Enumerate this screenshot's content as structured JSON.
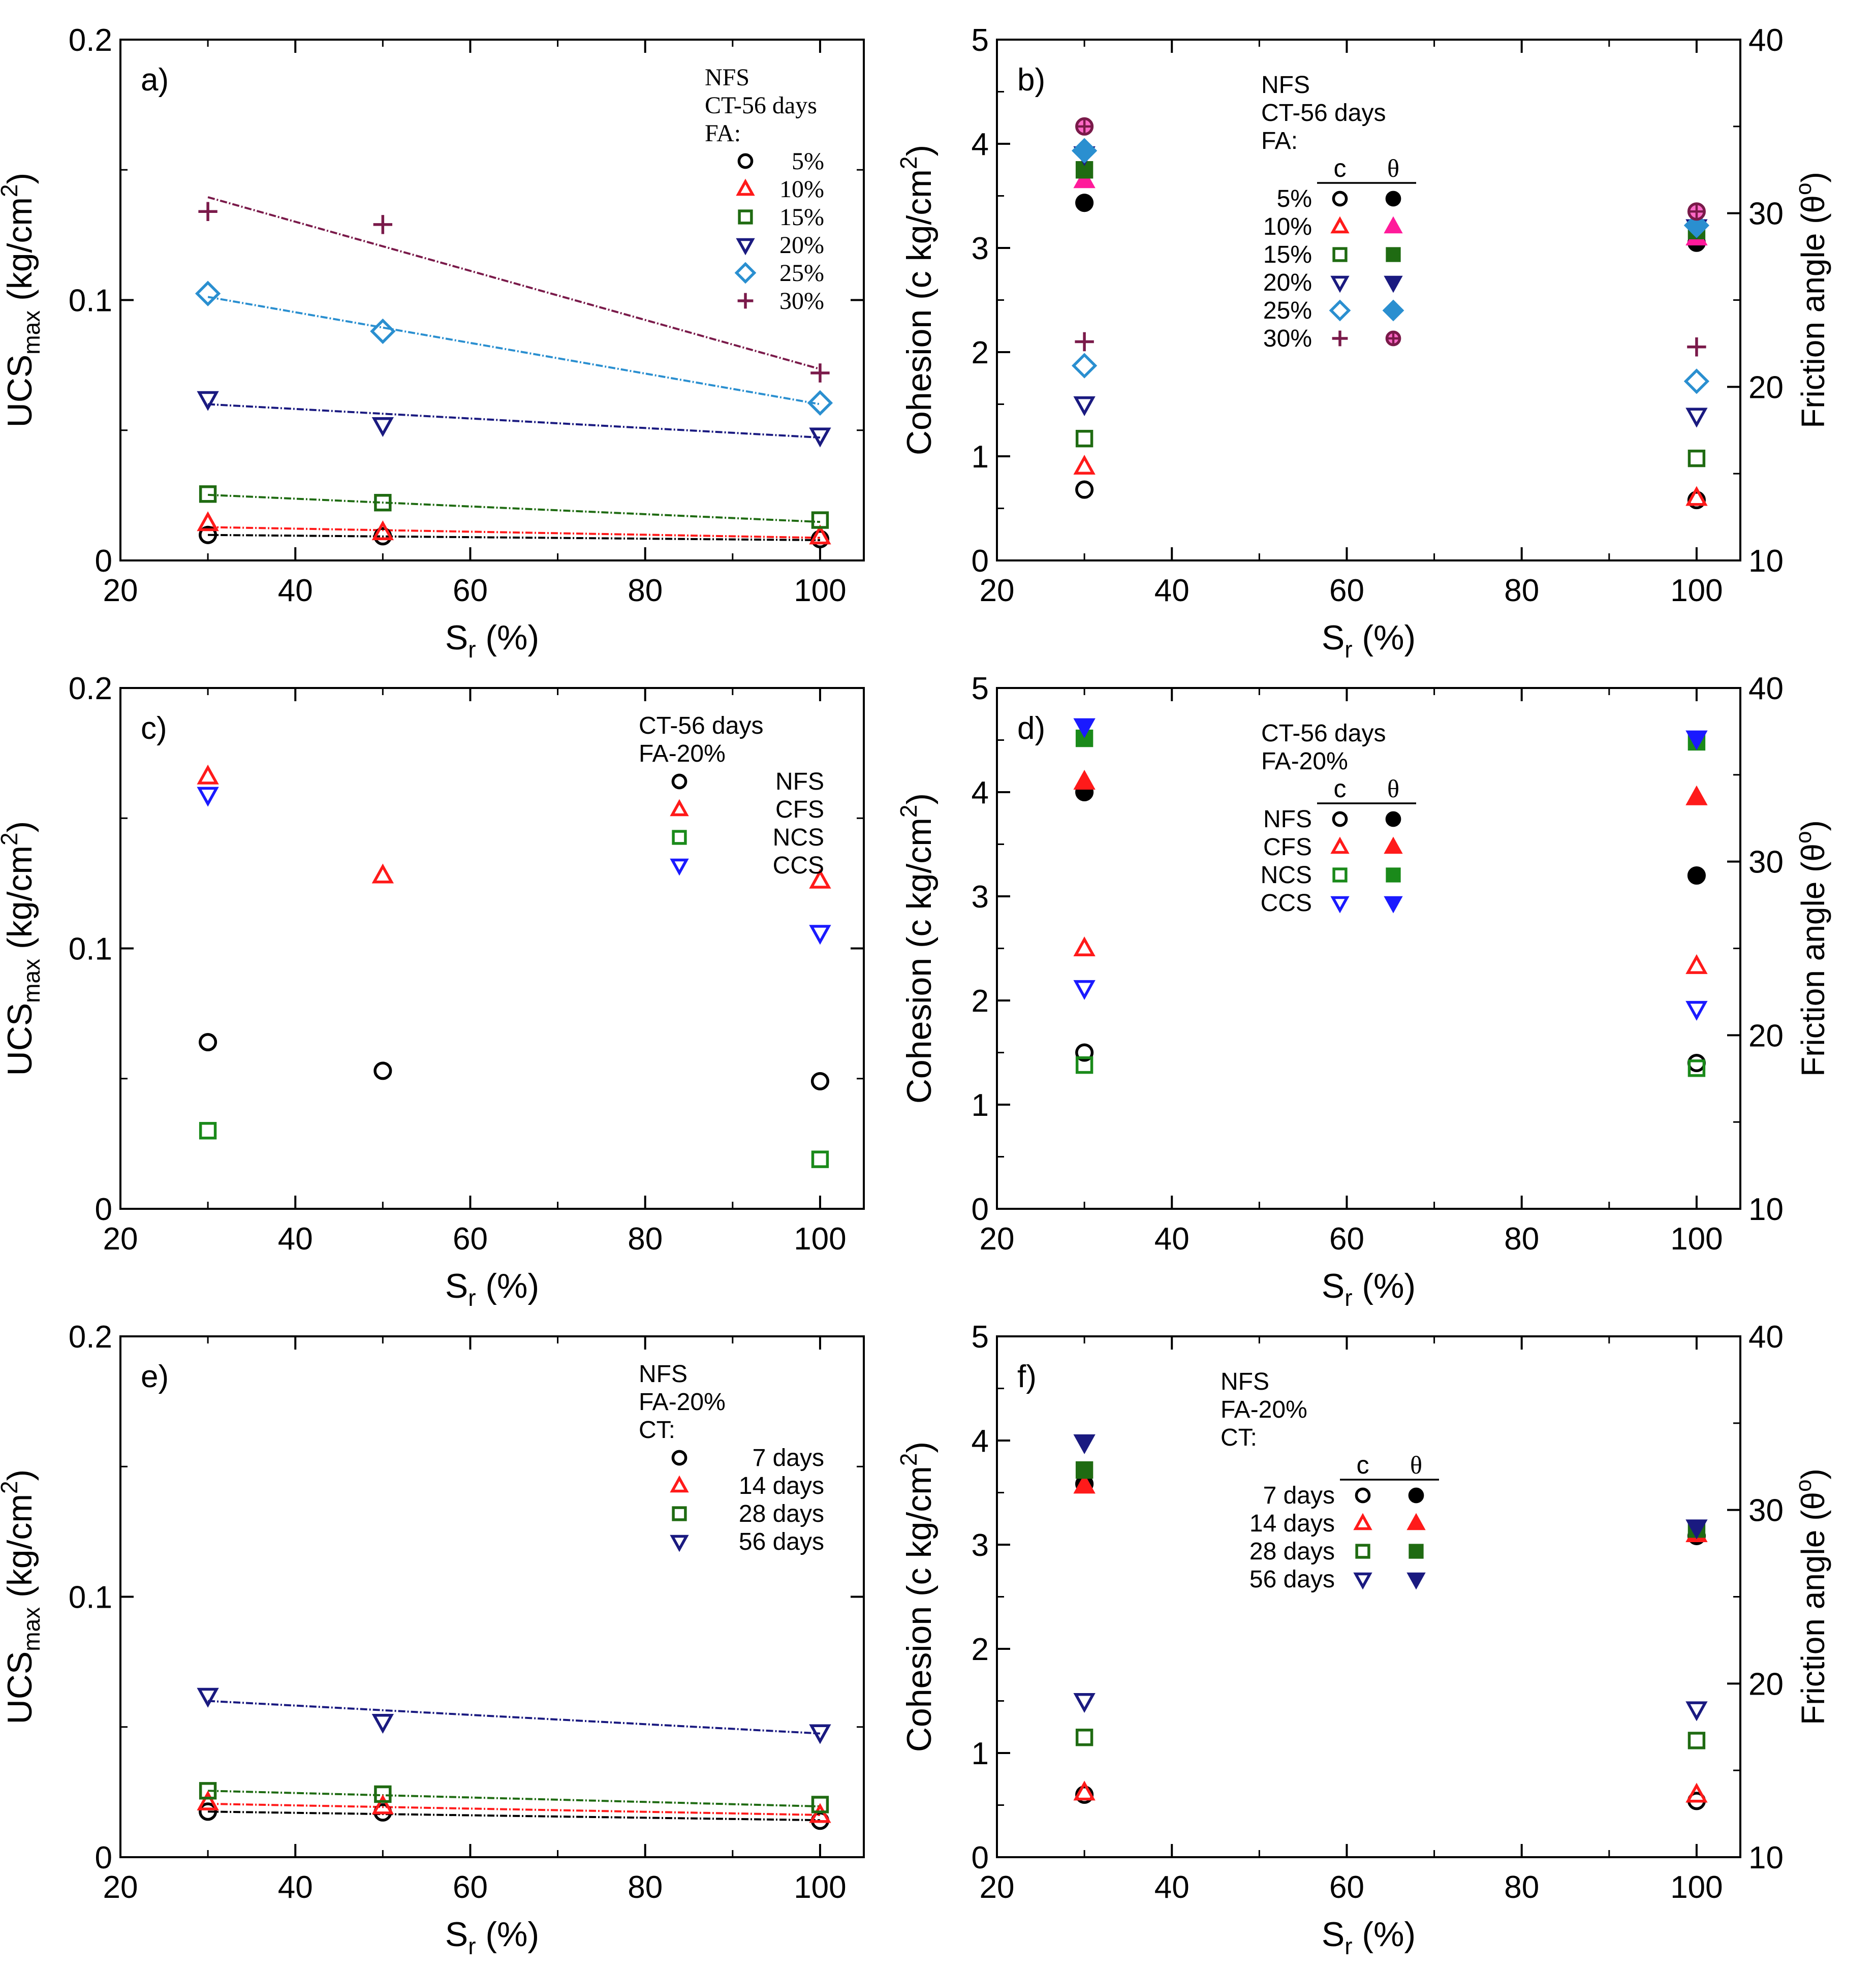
{
  "figure": {
    "colors": {
      "black": "#000000",
      "red": "#ff1a1a",
      "green": "#1f6b12",
      "darkgreen": "#1f6b12",
      "navy": "#1a1a80",
      "blue": "#1a1aff",
      "cyan": "#2a8fd0",
      "purple": "#7a1a4a",
      "magenta": "#ff1a9a",
      "brightgreen": "#1a8a1a"
    }
  },
  "chart_data": [
    {
      "id": "a",
      "type": "scatter",
      "panel_label": "a)",
      "xlabel_main": "S",
      "xlabel_sub": "r",
      "xlabel_tail": " (%)",
      "ylabel_main": "UCS",
      "ylabel_sub": "max",
      "ylabel_tail": " (kg/cm",
      "ylabel_sup": "2",
      "ylabel_close": ")",
      "xlim": [
        20,
        105
      ],
      "ylim": [
        0,
        0.2
      ],
      "xticks": [
        20,
        40,
        60,
        80,
        100
      ],
      "xtick_labels": [
        "20",
        "40",
        "60",
        "80",
        "100"
      ],
      "yticks": [
        0,
        0.1,
        0.2
      ],
      "ytick_labels": [
        "0",
        "0.1",
        "0.2"
      ],
      "legend_title": [
        "NFS",
        "CT-56 days",
        "FA:"
      ],
      "series": [
        {
          "name": "5%",
          "marker": "circle",
          "color": "black",
          "x": [
            30,
            50,
            100
          ],
          "y": [
            0.0098,
            0.0093,
            0.0082
          ],
          "fit": [
            [
              30,
              0.0098
            ],
            [
              100,
              0.0078
            ]
          ]
        },
        {
          "name": "10%",
          "marker": "triangle",
          "color": "red",
          "x": [
            30,
            50,
            100
          ],
          "y": [
            0.0143,
            0.0108,
            0.0092
          ],
          "fit": [
            [
              30,
              0.0128
            ],
            [
              100,
              0.0087
            ]
          ]
        },
        {
          "name": "15%",
          "marker": "square",
          "color": "darkgreen",
          "x": [
            30,
            50,
            100
          ],
          "y": [
            0.0255,
            0.0222,
            0.0155
          ],
          "fit": [
            [
              30,
              0.0252
            ],
            [
              100,
              0.0148
            ]
          ]
        },
        {
          "name": "20%",
          "marker": "triangle-down",
          "color": "navy",
          "x": [
            30,
            50,
            100
          ],
          "y": [
            0.062,
            0.052,
            0.048
          ],
          "fit": [
            [
              30,
              0.06
            ],
            [
              100,
              0.0472
            ]
          ]
        },
        {
          "name": "25%",
          "marker": "diamond",
          "color": "cyan",
          "x": [
            30,
            50,
            100
          ],
          "y": [
            0.1025,
            0.088,
            0.0605
          ],
          "fit": [
            [
              30,
              0.1012
            ],
            [
              100,
              0.06
            ]
          ]
        },
        {
          "name": "30%",
          "marker": "plus",
          "color": "purple",
          "x": [
            30,
            50,
            100
          ],
          "y": [
            0.134,
            0.129,
            0.072
          ],
          "fit": [
            [
              30,
              0.1395
            ],
            [
              100,
              0.0735
            ]
          ]
        }
      ]
    },
    {
      "id": "b",
      "type": "scatter",
      "panel_label": "b)",
      "xlabel_main": "S",
      "xlabel_sub": "r",
      "xlabel_tail": " (%)",
      "ylabel": "Cohesion (c kg/cm",
      "ylabel_sup": "2",
      "ylabel_close": ")",
      "y2label": "Friction angle (θ",
      "y2label_sup": "o",
      "y2label_close": ")",
      "xlim": [
        20,
        105
      ],
      "ylim": [
        0,
        5
      ],
      "y2lim": [
        10,
        40
      ],
      "xticks": [
        20,
        40,
        60,
        80,
        100
      ],
      "xtick_labels": [
        "20",
        "40",
        "60",
        "80",
        "100"
      ],
      "yticks": [
        0,
        1,
        2,
        3,
        4,
        5
      ],
      "ytick_labels": [
        "0",
        "1",
        "2",
        "3",
        "4",
        "5"
      ],
      "y2ticks": [
        10,
        20,
        30,
        40
      ],
      "y2tick_labels": [
        "10",
        "20",
        "30",
        "40"
      ],
      "legend_title": [
        "NFS",
        "CT-56 days",
        "FA:"
      ],
      "col_c": "c",
      "col_theta": "θ",
      "series": [
        {
          "name": "5%",
          "marker": "circle",
          "color": "black",
          "x": [
            30,
            100
          ],
          "c": [
            0.68,
            0.58
          ],
          "theta": [
            30.6,
            28.3
          ]
        },
        {
          "name": "10%",
          "marker": "triangle",
          "color": "red",
          "x": [
            30,
            100
          ],
          "c": [
            0.9,
            0.6
          ],
          "theta": [
            31.9,
            28.6
          ],
          "theta_color": "magenta"
        },
        {
          "name": "15%",
          "marker": "square",
          "color": "darkgreen",
          "x": [
            30,
            100
          ],
          "c": [
            1.17,
            0.98
          ],
          "theta": [
            32.5,
            29.0
          ]
        },
        {
          "name": "20%",
          "marker": "triangle-down",
          "color": "navy",
          "x": [
            30,
            100
          ],
          "c": [
            1.5,
            1.39
          ],
          "theta": [
            33.4,
            29.2
          ]
        },
        {
          "name": "25%",
          "marker": "diamond",
          "color": "cyan",
          "x": [
            30,
            100
          ],
          "c": [
            1.87,
            1.72
          ],
          "theta": [
            33.6,
            29.3
          ]
        },
        {
          "name": "30%",
          "marker": "plus",
          "color": "purple",
          "x": [
            30,
            100
          ],
          "c": [
            2.1,
            2.05
          ],
          "theta": [
            35.0,
            30.1
          ],
          "theta_marker": "circle-plus"
        }
      ]
    },
    {
      "id": "c",
      "type": "scatter",
      "panel_label": "c)",
      "xlabel_main": "S",
      "xlabel_sub": "r",
      "xlabel_tail": " (%)",
      "ylabel_main": "UCS",
      "ylabel_sub": "max",
      "ylabel_tail": " (kg/cm",
      "ylabel_sup": "2",
      "ylabel_close": ")",
      "xlim": [
        20,
        105
      ],
      "ylim": [
        0,
        0.2
      ],
      "xticks": [
        20,
        40,
        60,
        80,
        100
      ],
      "xtick_labels": [
        "20",
        "40",
        "60",
        "80",
        "100"
      ],
      "yticks": [
        0,
        0.1,
        0.2
      ],
      "ytick_labels": [
        "0",
        "0.1",
        "0.2"
      ],
      "legend_title": [
        "CT-56 days",
        "FA-20%"
      ],
      "series": [
        {
          "name": "NFS",
          "marker": "circle",
          "color": "black",
          "x": [
            30,
            50,
            100
          ],
          "y": [
            0.064,
            0.053,
            0.049
          ]
        },
        {
          "name": "CFS",
          "marker": "triangle",
          "color": "red",
          "x": [
            30,
            50,
            100
          ],
          "y": [
            0.166,
            0.128,
            0.126
          ]
        },
        {
          "name": "NCS",
          "marker": "square",
          "color": "brightgreen",
          "x": [
            30,
            100
          ],
          "y": [
            0.03,
            0.019
          ]
        },
        {
          "name": "CCS",
          "marker": "triangle-down",
          "color": "blue",
          "x": [
            30,
            100
          ],
          "y": [
            0.159,
            0.106
          ]
        }
      ]
    },
    {
      "id": "d",
      "type": "scatter",
      "panel_label": "d)",
      "xlabel_main": "S",
      "xlabel_sub": "r",
      "xlabel_tail": " (%)",
      "ylabel": "Cohesion (c kg/cm",
      "ylabel_sup": "2",
      "ylabel_close": ")",
      "y2label": "Friction angle (θ",
      "y2label_sup": "o",
      "y2label_close": ")",
      "xlim": [
        20,
        105
      ],
      "ylim": [
        0,
        5
      ],
      "y2lim": [
        10,
        40
      ],
      "xticks": [
        20,
        40,
        60,
        80,
        100
      ],
      "xtick_labels": [
        "20",
        "40",
        "60",
        "80",
        "100"
      ],
      "yticks": [
        0,
        1,
        2,
        3,
        4,
        5
      ],
      "ytick_labels": [
        "0",
        "1",
        "2",
        "3",
        "4",
        "5"
      ],
      "y2ticks": [
        10,
        20,
        30,
        40
      ],
      "y2tick_labels": [
        "10",
        "20",
        "30",
        "40"
      ],
      "legend_title": [
        "CT-56 days",
        "FA-20%"
      ],
      "col_c": "c",
      "col_theta": "θ",
      "series": [
        {
          "name": "NFS",
          "marker": "circle",
          "color": "black",
          "x": [
            30,
            100
          ],
          "c": [
            1.5,
            1.4
          ],
          "theta": [
            34.0,
            29.2
          ]
        },
        {
          "name": "CFS",
          "marker": "triangle",
          "color": "red",
          "x": [
            30,
            100
          ],
          "c": [
            2.5,
            2.33
          ],
          "theta": [
            34.6,
            33.7
          ]
        },
        {
          "name": "NCS",
          "marker": "square",
          "color": "brightgreen",
          "x": [
            30,
            100
          ],
          "c": [
            1.38,
            1.35
          ],
          "theta": [
            37.1,
            36.9
          ]
        },
        {
          "name": "CCS",
          "marker": "triangle-down",
          "color": "blue",
          "x": [
            30,
            100
          ],
          "c": [
            2.12,
            1.92
          ],
          "theta": [
            37.8,
            37.1
          ]
        }
      ]
    },
    {
      "id": "e",
      "type": "scatter",
      "panel_label": "e)",
      "xlabel_main": "S",
      "xlabel_sub": "r",
      "xlabel_tail": " (%)",
      "ylabel_main": "UCS",
      "ylabel_sub": "max",
      "ylabel_tail": " (kg/cm",
      "ylabel_sup": "2",
      "ylabel_close": ")",
      "xlim": [
        20,
        105
      ],
      "ylim": [
        0,
        0.2
      ],
      "xticks": [
        20,
        40,
        60,
        80,
        100
      ],
      "xtick_labels": [
        "20",
        "40",
        "60",
        "80",
        "100"
      ],
      "yticks": [
        0,
        0.1,
        0.2
      ],
      "ytick_labels": [
        "0",
        "0.1",
        "0.2"
      ],
      "legend_title": [
        "NFS",
        "FA-20%",
        "CT:"
      ],
      "series": [
        {
          "name": "7 days",
          "marker": "circle",
          "color": "black",
          "x": [
            30,
            50,
            100
          ],
          "y": [
            0.0175,
            0.0172,
            0.014
          ],
          "fit": [
            [
              30,
              0.0175
            ],
            [
              100,
              0.0142
            ]
          ]
        },
        {
          "name": "14 days",
          "marker": "triangle",
          "color": "red",
          "x": [
            30,
            50,
            100
          ],
          "y": [
            0.021,
            0.0195,
            0.0162
          ],
          "fit": [
            [
              30,
              0.0205
            ],
            [
              100,
              0.0162
            ]
          ]
        },
        {
          "name": "28 days",
          "marker": "square",
          "color": "darkgreen",
          "x": [
            30,
            50,
            100
          ],
          "y": [
            0.0255,
            0.0242,
            0.0202
          ],
          "fit": [
            [
              30,
              0.0255
            ],
            [
              100,
              0.0195
            ]
          ]
        },
        {
          "name": "56 days",
          "marker": "triangle-down",
          "color": "navy",
          "x": [
            30,
            50,
            100
          ],
          "y": [
            0.062,
            0.052,
            0.048
          ],
          "fit": [
            [
              30,
              0.06
            ],
            [
              100,
              0.0475
            ]
          ]
        }
      ]
    },
    {
      "id": "f",
      "type": "scatter",
      "panel_label": "f)",
      "xlabel_main": "S",
      "xlabel_sub": "r",
      "xlabel_tail": " (%)",
      "ylabel": "Cohesion (c kg/cm",
      "ylabel_sup": "2",
      "ylabel_close": ")",
      "y2label": "Friction angle (θ",
      "y2label_sup": "o",
      "y2label_close": ")",
      "xlim": [
        20,
        105
      ],
      "ylim": [
        0,
        5
      ],
      "y2lim": [
        10,
        40
      ],
      "xticks": [
        20,
        40,
        60,
        80,
        100
      ],
      "xtick_labels": [
        "20",
        "40",
        "60",
        "80",
        "100"
      ],
      "yticks": [
        0,
        1,
        2,
        3,
        4,
        5
      ],
      "ytick_labels": [
        "0",
        "1",
        "2",
        "3",
        "4",
        "5"
      ],
      "y2ticks": [
        10,
        20,
        30,
        40
      ],
      "y2tick_labels": [
        "10",
        "20",
        "30",
        "40"
      ],
      "legend_title": [
        "NFS",
        "FA-20%",
        "CT:"
      ],
      "col_c": "c",
      "col_theta": "θ",
      "series": [
        {
          "name": "7 days",
          "marker": "circle",
          "color": "black",
          "x": [
            30,
            100
          ],
          "c": [
            0.6,
            0.54
          ],
          "theta": [
            31.5,
            28.5
          ]
        },
        {
          "name": "14 days",
          "marker": "triangle",
          "color": "red",
          "x": [
            30,
            100
          ],
          "c": [
            0.62,
            0.6
          ],
          "theta": [
            31.4,
            28.6
          ]
        },
        {
          "name": "28 days",
          "marker": "square",
          "color": "darkgreen",
          "x": [
            30,
            100
          ],
          "c": [
            1.15,
            1.12
          ],
          "theta": [
            32.3,
            28.9
          ]
        },
        {
          "name": "56 days",
          "marker": "triangle-down",
          "color": "navy",
          "x": [
            30,
            100
          ],
          "c": [
            1.5,
            1.42
          ],
          "theta": [
            33.9,
            29.0
          ]
        }
      ]
    }
  ]
}
